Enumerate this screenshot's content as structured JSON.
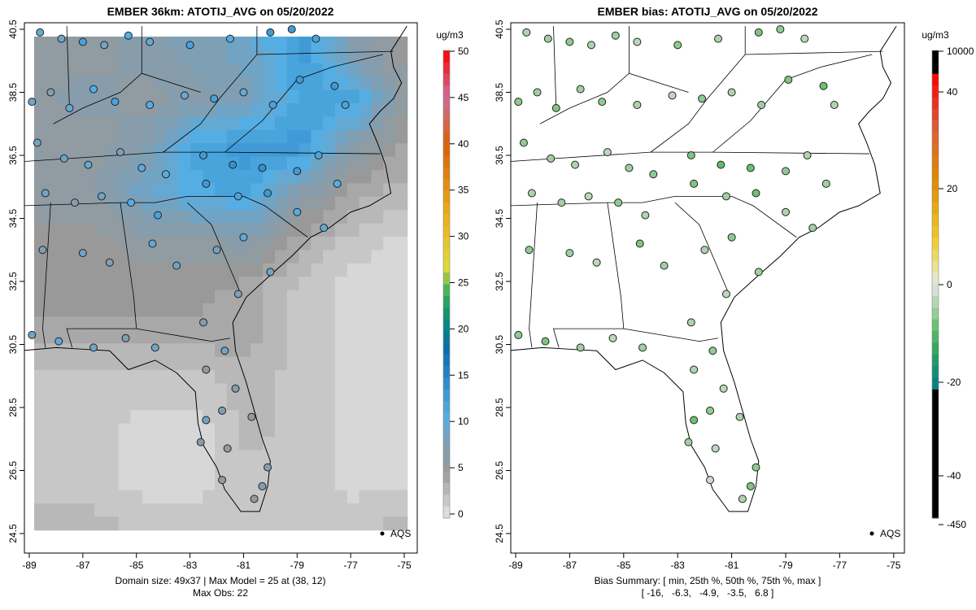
{
  "chart_data": [
    {
      "type": "heatmap",
      "title": "EMBER 36km: ATOTIJ_AVG on 05/20/2022",
      "units": "ug/m3",
      "x_ticks": [
        "-89",
        "-87",
        "-85",
        "-83",
        "-81",
        "-79",
        "-77",
        "-75"
      ],
      "y_ticks": [
        "24.5",
        "26.5",
        "28.5",
        "30.5",
        "32.5",
        "34.5",
        "36.5",
        "38.5",
        "40.5"
      ],
      "colorbar_ticks": [
        "0",
        "5",
        "10",
        "15",
        "20",
        "25",
        "30",
        "35",
        "40",
        "45",
        "50"
      ],
      "colorbar_range": [
        0,
        50
      ],
      "legend": "AQS",
      "caption_line1": "Domain size: 49x37 | Max Model = 25 at (38, 12)",
      "caption_line2": "Max Obs: 22",
      "model_grid_coarse": {
        "lon": [
          -89,
          -87,
          -85,
          -83,
          -81,
          -79,
          -77,
          -75
        ],
        "lat": [
          40,
          38.5,
          37,
          35.5,
          34,
          32.5,
          31,
          29.5,
          28,
          26.5,
          25
        ],
        "values": [
          [
            6,
            6,
            7,
            8,
            9,
            13,
            7,
            5
          ],
          [
            6,
            7,
            6,
            7,
            8,
            12,
            12,
            5
          ],
          [
            6,
            6,
            7,
            12,
            13,
            13,
            7,
            4
          ],
          [
            6,
            6,
            9,
            11,
            12,
            7,
            4,
            3
          ],
          [
            5,
            5,
            6,
            6,
            7,
            4,
            2,
            1
          ],
          [
            5,
            5,
            5,
            5,
            4,
            2,
            1,
            1
          ],
          [
            4,
            4,
            4,
            4,
            4,
            2,
            1,
            1
          ],
          [
            2,
            2,
            2,
            2,
            3,
            2,
            1,
            1
          ],
          [
            2,
            2,
            1,
            1,
            3,
            2,
            1,
            1
          ],
          [
            2,
            2,
            1,
            1,
            2,
            2,
            1,
            1
          ],
          [
            3,
            3,
            2,
            2,
            2,
            2,
            2,
            3
          ]
        ]
      }
    },
    {
      "type": "scatter",
      "title": "EMBER bias: ATOTIJ_AVG on 05/20/2022",
      "units": "ug/m3",
      "x_ticks": [
        "-89",
        "-87",
        "-85",
        "-83",
        "-81",
        "-79",
        "-77",
        "-75"
      ],
      "y_ticks": [
        "24.5",
        "26.5",
        "28.5",
        "30.5",
        "32.5",
        "34.5",
        "36.5",
        "38.5",
        "40.5"
      ],
      "colorbar_ticks": [
        "-450",
        "-40",
        "-20",
        "0",
        "20",
        "40",
        "10000"
      ],
      "legend": "AQS",
      "caption_line1": "Bias Summary: [ min, 25th %, 50th %, 75th %, max ]",
      "caption_line2": "[ -16,   -6.3,   -4.9,   -3.5,   6.8 ]"
    }
  ],
  "stations": [
    [
      -88.6,
      40.4,
      10,
      -4
    ],
    [
      -87.8,
      40.2,
      9,
      -5
    ],
    [
      -87.0,
      40.1,
      12,
      -6
    ],
    [
      -86.2,
      40.0,
      9,
      -4
    ],
    [
      -85.3,
      40.3,
      11,
      -5
    ],
    [
      -84.5,
      40.1,
      10,
      -3
    ],
    [
      -83.0,
      40.0,
      12,
      -6
    ],
    [
      -81.5,
      40.2,
      11,
      -4
    ],
    [
      -80.0,
      40.4,
      13,
      -7
    ],
    [
      -79.2,
      40.5,
      13,
      -6
    ],
    [
      -78.3,
      40.2,
      12,
      -3
    ],
    [
      -88.9,
      38.2,
      9,
      -6
    ],
    [
      -88.2,
      38.5,
      8,
      -5
    ],
    [
      -87.5,
      38.0,
      10,
      -7
    ],
    [
      -86.6,
      38.6,
      11,
      -5
    ],
    [
      -85.8,
      38.2,
      12,
      -6
    ],
    [
      -84.5,
      38.1,
      11,
      -4
    ],
    [
      -83.2,
      38.4,
      10,
      -3
    ],
    [
      -82.1,
      38.3,
      12,
      -6
    ],
    [
      -81.0,
      38.5,
      10,
      -4
    ],
    [
      -79.9,
      38.1,
      12,
      -5
    ],
    [
      -78.9,
      38.9,
      13,
      -7
    ],
    [
      -77.6,
      38.7,
      13,
      -8
    ],
    [
      -77.2,
      38.1,
      12,
      -4
    ],
    [
      -88.7,
      36.9,
      9,
      -6
    ],
    [
      -87.7,
      36.4,
      9,
      -5
    ],
    [
      -86.8,
      36.2,
      10,
      -4
    ],
    [
      -85.6,
      36.6,
      8,
      -3
    ],
    [
      -84.8,
      36.1,
      10,
      -5
    ],
    [
      -83.9,
      35.9,
      11,
      -6
    ],
    [
      -82.5,
      36.5,
      13,
      -7
    ],
    [
      -81.4,
      36.2,
      14,
      -9
    ],
    [
      -80.3,
      36.1,
      14,
      -8
    ],
    [
      -79.0,
      36.0,
      13,
      -6
    ],
    [
      -78.2,
      36.5,
      12,
      -4
    ],
    [
      -77.5,
      35.6,
      11,
      -5
    ],
    [
      -88.4,
      35.3,
      9,
      -4
    ],
    [
      -87.3,
      35.0,
      8,
      -5
    ],
    [
      -86.3,
      35.2,
      9,
      -3
    ],
    [
      -85.2,
      35.0,
      11,
      -6
    ],
    [
      -84.2,
      34.6,
      12,
      -4
    ],
    [
      -82.4,
      35.6,
      13,
      -7
    ],
    [
      -81.2,
      35.2,
      12,
      -5
    ],
    [
      -80.1,
      35.3,
      13,
      -8
    ],
    [
      -79.0,
      34.7,
      11,
      -4
    ],
    [
      -78.0,
      34.2,
      10,
      -5
    ],
    [
      -88.5,
      33.5,
      8,
      -6
    ],
    [
      -87.0,
      33.4,
      9,
      -5
    ],
    [
      -86.0,
      33.1,
      8,
      -3
    ],
    [
      -84.4,
      33.7,
      10,
      -7
    ],
    [
      -83.5,
      33.0,
      9,
      -5
    ],
    [
      -82.0,
      33.5,
      9,
      -4
    ],
    [
      -81.0,
      33.9,
      10,
      -6
    ],
    [
      -80.0,
      32.8,
      9,
      -5
    ],
    [
      -81.2,
      32.1,
      8,
      -3
    ],
    [
      -88.9,
      30.8,
      9,
      -6
    ],
    [
      -87.9,
      30.6,
      10,
      -7
    ],
    [
      -86.6,
      30.4,
      9,
      -5
    ],
    [
      -85.4,
      30.7,
      8,
      -3
    ],
    [
      -84.3,
      30.4,
      9,
      -5
    ],
    [
      -82.5,
      31.2,
      7,
      -4
    ],
    [
      -81.7,
      30.3,
      9,
      -6
    ],
    [
      -82.4,
      29.7,
      6,
      -4
    ],
    [
      -81.3,
      29.1,
      7,
      -3
    ],
    [
      -82.4,
      28.1,
      9,
      -8
    ],
    [
      -81.8,
      28.4,
      8,
      -6
    ],
    [
      -80.7,
      28.2,
      6,
      -4
    ],
    [
      -82.6,
      27.4,
      7,
      -5
    ],
    [
      -81.6,
      27.2,
      5,
      -3
    ],
    [
      -80.1,
      26.6,
      7,
      -6
    ],
    [
      -80.3,
      26.0,
      8,
      -7
    ],
    [
      -80.6,
      25.6,
      5,
      -4
    ],
    [
      -81.8,
      26.2,
      6,
      -2
    ]
  ],
  "panel_marker_label": "AQS"
}
